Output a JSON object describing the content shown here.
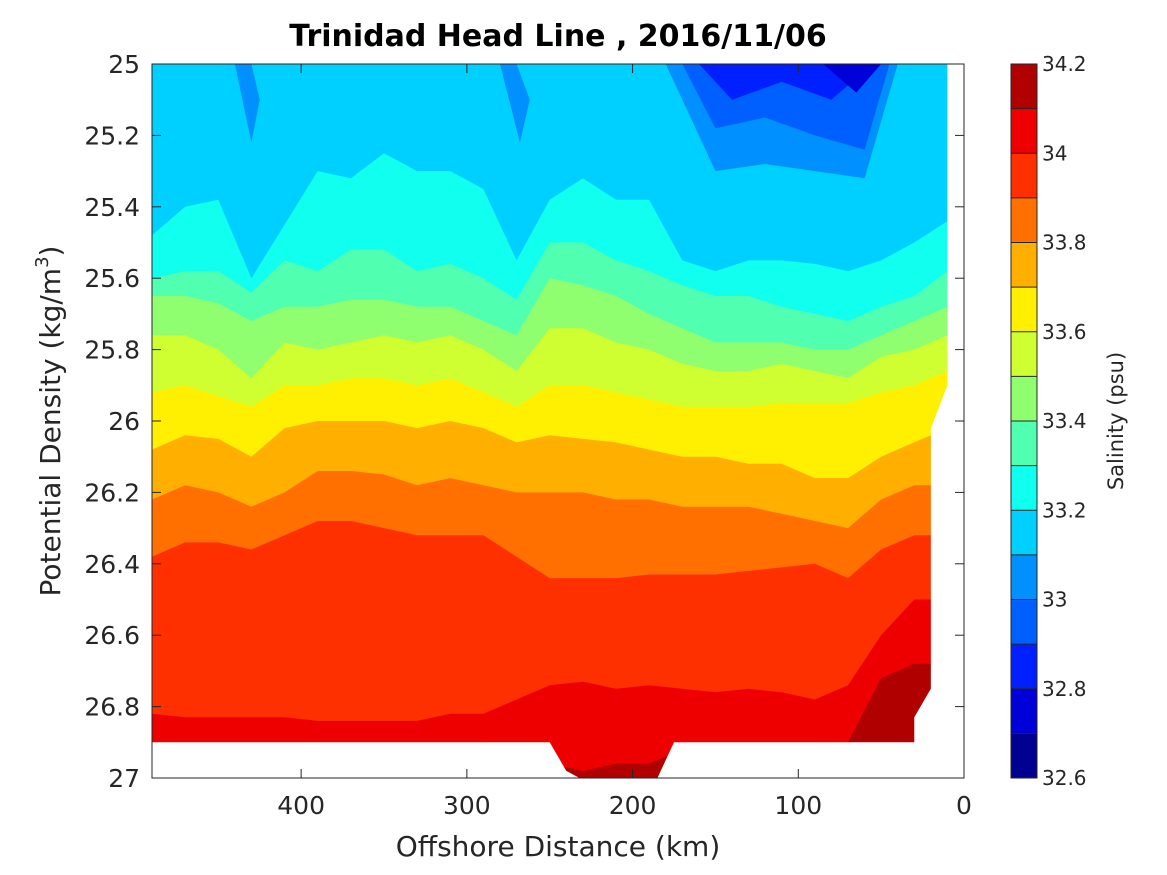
{
  "chart_data": {
    "type": "contourf",
    "title": "Trinidad Head Line , 2016/11/06",
    "xlabel": "Offshore Distance (km)",
    "ylabel_main": "Potential Density (kg/m",
    "ylabel_sup": "3",
    "ylabel_close": ")",
    "colorbar_label": "Salinity (psu)",
    "xlim": [
      490,
      0
    ],
    "x_reversed": true,
    "ylim": [
      27,
      25
    ],
    "y_reversed": true,
    "x_ticks": [
      400,
      300,
      200,
      100,
      0
    ],
    "x_tick_labels": [
      "400",
      "300",
      "200",
      "100",
      "0"
    ],
    "y_ticks": [
      25,
      25.2,
      25.4,
      25.6,
      25.8,
      26,
      26.2,
      26.4,
      26.6,
      26.8,
      27
    ],
    "y_tick_labels": [
      "25",
      "25.2",
      "25.4",
      "25.6",
      "25.8",
      "26",
      "26.2",
      "26.4",
      "26.6",
      "26.8",
      "27"
    ],
    "colorbar_ticks": [
      32.6,
      32.8,
      33,
      33.2,
      33.4,
      33.6,
      33.8,
      34,
      34.2
    ],
    "colorbar_tick_labels": [
      "32.6",
      "32.8",
      "33",
      "33.2",
      "33.4",
      "33.6",
      "33.8",
      "34",
      "34.2"
    ],
    "levels": [
      32.6,
      32.7,
      32.8,
      32.9,
      33.0,
      33.1,
      33.2,
      33.3,
      33.4,
      33.5,
      33.6,
      33.7,
      33.8,
      33.9,
      34.0,
      34.1,
      34.2
    ],
    "level_colors": [
      "#000090",
      "#0000d8",
      "#0020ff",
      "#0060ff",
      "#0090ff",
      "#00d0ff",
      "#10ffef",
      "#50ffaf",
      "#8fff70",
      "#cfff30",
      "#ffef00",
      "#ffaf00",
      "#ff7000",
      "#ff3000",
      "#ef0000",
      "#b00000"
    ],
    "x": [
      490,
      470,
      450,
      430,
      410,
      390,
      370,
      350,
      330,
      310,
      290,
      270,
      250,
      230,
      210,
      190,
      170,
      150,
      130,
      110,
      90,
      70,
      50,
      30,
      10
    ],
    "isopycnal_salinity_contours": [
      {
        "level": 33.1,
        "y": [
          25.2,
          25.05,
          25.0,
          25.0,
          25.0,
          25.0,
          25.0,
          25.0,
          25.0,
          25.0,
          25.0,
          25.0,
          25.0,
          25.0,
          25.0,
          25.0,
          25.0,
          25.0,
          25.0,
          25.0,
          25.0,
          25.0,
          25.0,
          25.0,
          25.0
        ]
      },
      {
        "level": 33.2,
        "y": [
          25.48,
          25.4,
          25.38,
          25.6,
          25.45,
          25.3,
          25.32,
          25.25,
          25.3,
          25.3,
          25.35,
          25.55,
          25.38,
          25.32,
          25.38,
          25.38,
          25.55,
          25.58,
          25.55,
          25.55,
          25.56,
          25.58,
          25.55,
          25.5,
          25.44
        ]
      },
      {
        "level": 33.3,
        "y": [
          25.6,
          25.58,
          25.58,
          25.64,
          25.55,
          25.58,
          25.52,
          25.52,
          25.58,
          25.56,
          25.6,
          25.66,
          25.5,
          25.5,
          25.55,
          25.58,
          25.62,
          25.65,
          25.65,
          25.68,
          25.7,
          25.72,
          25.68,
          25.65,
          25.58
        ]
      },
      {
        "level": 33.4,
        "y": [
          25.65,
          25.65,
          25.67,
          25.72,
          25.68,
          25.68,
          25.66,
          25.66,
          25.68,
          25.68,
          25.72,
          25.76,
          25.6,
          25.62,
          25.65,
          25.7,
          25.74,
          25.78,
          25.78,
          25.78,
          25.8,
          25.8,
          25.76,
          25.72,
          25.68
        ]
      },
      {
        "level": 33.5,
        "y": [
          25.76,
          25.76,
          25.8,
          25.88,
          25.78,
          25.8,
          25.78,
          25.76,
          25.78,
          25.76,
          25.8,
          25.86,
          25.74,
          25.74,
          25.78,
          25.8,
          25.84,
          25.86,
          25.86,
          25.84,
          25.86,
          25.88,
          25.82,
          25.8,
          25.76
        ]
      },
      {
        "level": 33.6,
        "y": [
          25.92,
          25.9,
          25.93,
          25.96,
          25.9,
          25.9,
          25.88,
          25.88,
          25.9,
          25.88,
          25.92,
          25.96,
          25.9,
          25.9,
          25.92,
          25.94,
          25.96,
          25.96,
          25.96,
          25.95,
          25.95,
          25.95,
          25.92,
          25.9,
          25.86
        ]
      },
      {
        "level": 33.7,
        "y": [
          26.08,
          26.04,
          26.05,
          26.1,
          26.02,
          26.0,
          26.0,
          26.0,
          26.02,
          26.0,
          26.02,
          26.06,
          26.04,
          26.05,
          26.06,
          26.08,
          26.1,
          26.1,
          26.12,
          26.12,
          26.16,
          26.16,
          26.1,
          26.06,
          26.02
        ]
      },
      {
        "level": 33.8,
        "y": [
          26.22,
          26.18,
          26.2,
          26.24,
          26.2,
          26.14,
          26.14,
          26.15,
          26.18,
          26.16,
          26.18,
          26.2,
          26.2,
          26.2,
          26.22,
          26.22,
          26.24,
          26.24,
          26.24,
          26.26,
          26.28,
          26.3,
          26.22,
          26.18,
          26.18
        ]
      },
      {
        "level": 33.9,
        "y": [
          26.38,
          26.34,
          26.34,
          26.36,
          26.32,
          26.28,
          26.28,
          26.3,
          26.32,
          26.32,
          26.32,
          26.38,
          26.44,
          26.44,
          26.44,
          26.43,
          26.43,
          26.43,
          26.42,
          26.41,
          26.4,
          26.44,
          26.36,
          26.32,
          26.32
        ]
      },
      {
        "level": 34.0,
        "y": [
          26.82,
          26.83,
          26.83,
          26.83,
          26.83,
          26.84,
          26.84,
          26.84,
          26.84,
          26.82,
          26.82,
          26.78,
          26.74,
          26.73,
          26.75,
          26.74,
          26.75,
          26.76,
          26.75,
          26.76,
          26.78,
          26.74,
          26.6,
          26.5,
          26.5
        ]
      },
      {
        "level": 34.1,
        "y": [
          26.9,
          26.9,
          26.9,
          26.9,
          26.9,
          26.9,
          26.9,
          26.9,
          26.9,
          26.9,
          26.9,
          26.92,
          26.96,
          26.98,
          26.96,
          26.96,
          26.92,
          26.92,
          26.92,
          26.92,
          26.9,
          26.9,
          26.72,
          26.68,
          26.68
        ]
      }
    ],
    "fresh_tongues": [
      {
        "level": 33.1,
        "x": [
          440,
          430,
          420,
          410,
          430
        ],
        "y": [
          25.0,
          25.32,
          25.28,
          25.0,
          25.0
        ]
      },
      {
        "level": 33.0,
        "x": [
          440,
          430,
          425,
          430
        ],
        "y": [
          25.0,
          25.22,
          25.1,
          25.0
        ]
      },
      {
        "level": 33.1,
        "x": [
          285,
          270,
          260,
          255,
          270
        ],
        "y": [
          25.0,
          25.4,
          25.35,
          25.0,
          25.0
        ]
      },
      {
        "level": 33.0,
        "x": [
          280,
          268,
          262,
          270
        ],
        "y": [
          25.0,
          25.22,
          25.1,
          25.0
        ]
      },
      {
        "level": 33.1,
        "x": [
          190,
          150,
          120,
          90,
          60,
          35,
          20
        ],
        "y": [
          25.0,
          25.4,
          25.38,
          25.4,
          25.42,
          25.3,
          25.0
        ]
      },
      {
        "level": 33.0,
        "x": [
          180,
          150,
          120,
          90,
          60,
          40
        ],
        "y": [
          25.0,
          25.3,
          25.28,
          25.3,
          25.32,
          25.0
        ]
      },
      {
        "level": 32.9,
        "x": [
          170,
          150,
          120,
          90,
          60,
          45
        ],
        "y": [
          25.0,
          25.18,
          25.15,
          25.2,
          25.24,
          25.0
        ]
      },
      {
        "level": 32.8,
        "x": [
          160,
          140,
          110,
          80,
          55
        ],
        "y": [
          25.0,
          25.1,
          25.05,
          25.1,
          25.0
        ]
      },
      {
        "level": 32.7,
        "x": [
          85,
          65,
          50
        ],
        "y": [
          25.0,
          25.08,
          25.0
        ]
      }
    ],
    "data_extent_note": "Region below sigma 26.9 and shoreward of ~20 km is unmapped (white)"
  }
}
